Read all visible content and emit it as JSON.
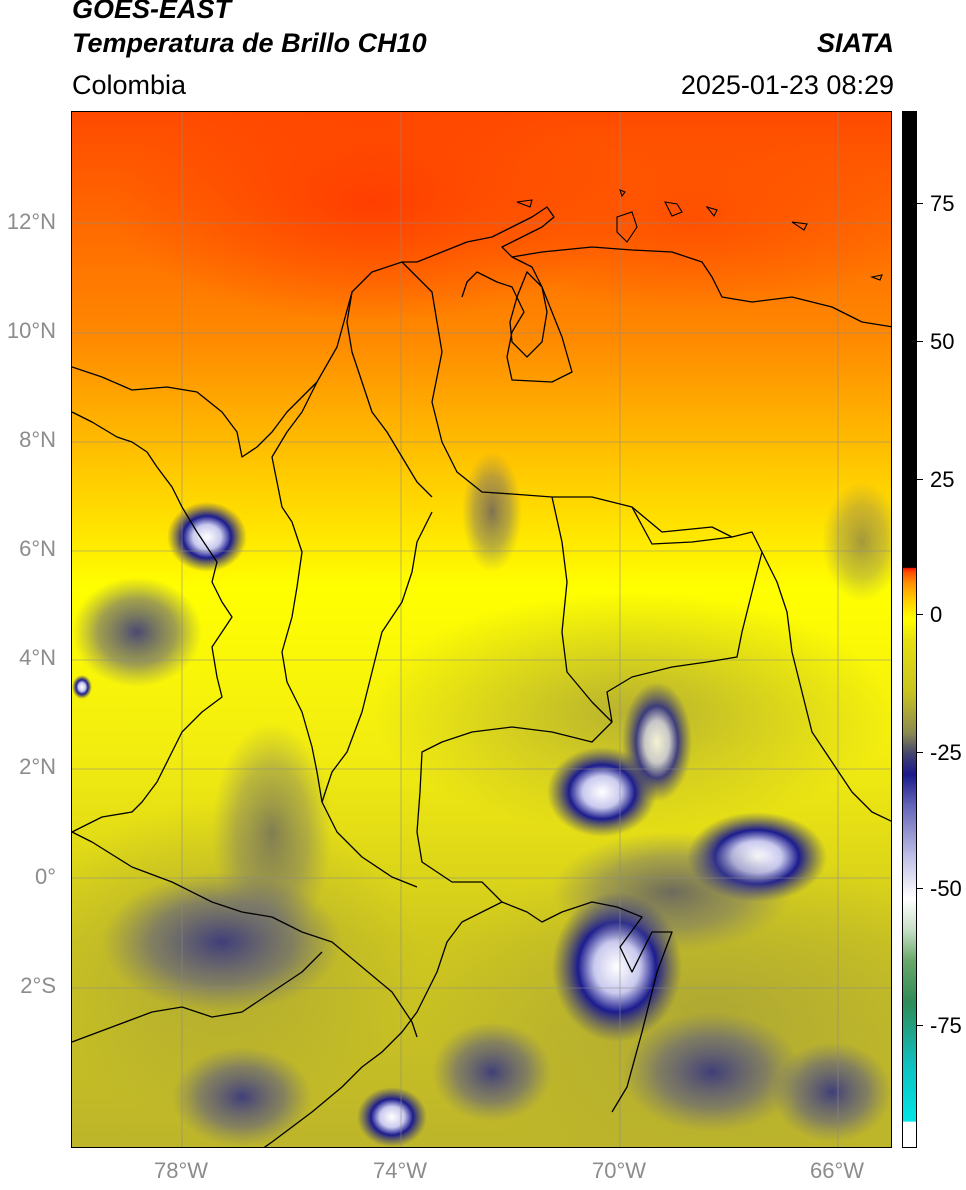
{
  "header": {
    "satellite": "GOES-EAST",
    "product": "Temperatura de Brillo CH10",
    "agency": "SIATA",
    "region": "Colombia",
    "timestamp": "2025-01-23 08:29"
  },
  "map": {
    "lat_ticks": [
      "12°N",
      "10°N",
      "8°N",
      "6°N",
      "4°N",
      "2°N",
      "0°",
      "2°S"
    ],
    "lon_ticks": [
      "78°W",
      "74°W",
      "70°W",
      "66°W"
    ],
    "lat_range": [
      -4.9,
      14.0
    ],
    "lon_range": [
      -80.0,
      -65.0
    ],
    "grid": true,
    "colors": {
      "warm": "#ff4a00",
      "mid": "#ffff00",
      "cool": "#c8c420",
      "cold_cloud": "#101080",
      "coldest": "#ffffff"
    }
  },
  "colorbar": {
    "ticks": [
      "75",
      "50",
      "25",
      "0",
      "-25",
      "-50",
      "-75"
    ],
    "range": [
      -95,
      90
    ],
    "colors": [
      "#ffffff",
      "#00e5e5",
      "#2e8b57",
      "#ffffff",
      "#1a1a8c",
      "#c8c420",
      "#ffff00",
      "#ff8000",
      "#ff0000",
      "#000000"
    ]
  }
}
